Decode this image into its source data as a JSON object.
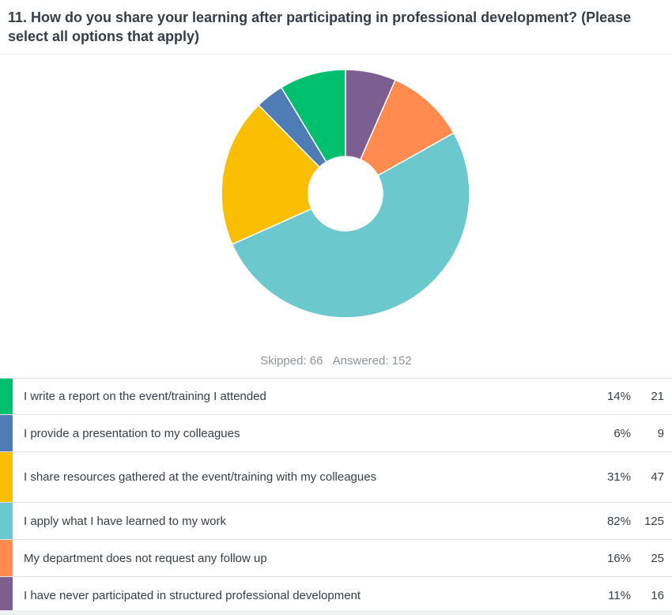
{
  "question": {
    "title": "11. How do you share your learning after participating in professional development? (Please select all options that apply)"
  },
  "summary": {
    "skipped": "Skipped: 66",
    "answered": "Answered: 152"
  },
  "chart_data": {
    "type": "pie",
    "donut": true,
    "categories": [
      "I write a report on the event/training I attended",
      "I provide a presentation to my colleagues",
      "I share resources gathered at the event/training with my colleagues",
      "I apply what I have learned to my work",
      "My department does not request any follow up",
      "I have never participated in structured professional development"
    ],
    "values": [
      21,
      9,
      47,
      125,
      25,
      16
    ],
    "percent_labels": [
      "14%",
      "6%",
      "31%",
      "82%",
      "16%",
      "11%"
    ],
    "count_labels": [
      "21",
      "9",
      "47",
      "125",
      "25",
      "16"
    ],
    "colors": [
      "#00bf6f",
      "#507cb6",
      "#f9be00",
      "#6bc8cd",
      "#ff8b4f",
      "#7d5e90"
    ],
    "title": "",
    "legend": "table-below"
  }
}
